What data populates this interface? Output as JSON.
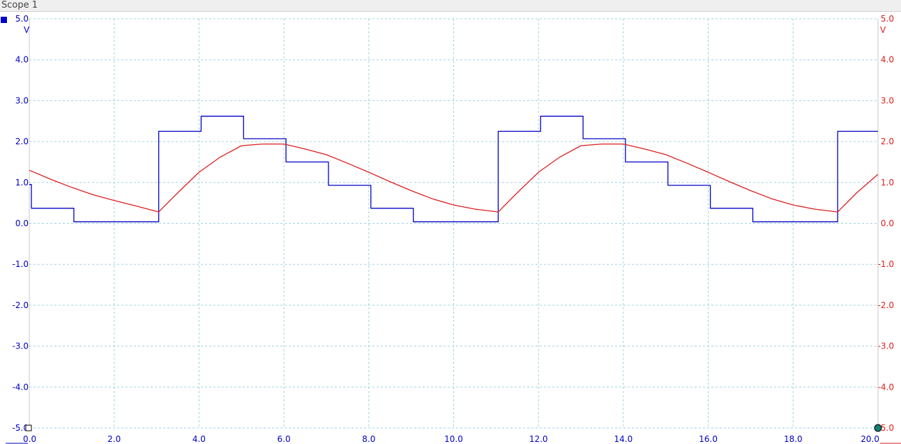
{
  "window": {
    "title": "Scope 1"
  },
  "chart_data": {
    "type": "line",
    "x_ticks": [
      "0.0",
      "2.0",
      "4.0",
      "6.0",
      "8.0",
      "10.0",
      "12.0",
      "14.0",
      "16.0",
      "18.0",
      "20.0"
    ],
    "y_ticks_left": [
      "5.0",
      "4.0",
      "3.0",
      "2.0",
      "1.0",
      "0.0",
      "-1.0",
      "-2.0",
      "-3.0",
      "-4.0",
      "-5.0"
    ],
    "y_ticks_right": [
      "5.0",
      "4.0",
      "3.0",
      "2.0",
      "1.0",
      "0.0",
      "-1.0",
      "-2.0",
      "-3.0",
      "-4.0",
      "-5.0"
    ],
    "xlim": [
      0,
      20
    ],
    "ylim": [
      -5,
      5
    ],
    "left_unit": "V",
    "right_unit": "V",
    "grid": true,
    "colors": {
      "channel_a": "#0000c8",
      "channel_b": "#dc1e1e",
      "grid": "#9fd3df",
      "accent": "#108070"
    },
    "series": [
      {
        "axis": "left",
        "step": true,
        "points": [
          [
            0,
            0.95
          ],
          [
            0.05,
            0.37
          ],
          [
            1.05,
            0.04
          ],
          [
            3.05,
            2.25
          ],
          [
            4.05,
            2.62
          ],
          [
            5.05,
            2.07
          ],
          [
            6.05,
            1.5
          ],
          [
            7.05,
            0.93
          ],
          [
            8.05,
            0.37
          ],
          [
            9.05,
            0.04
          ],
          [
            11.05,
            2.25
          ],
          [
            12.05,
            2.62
          ],
          [
            13.05,
            2.07
          ],
          [
            14.05,
            1.5
          ],
          [
            15.05,
            0.93
          ],
          [
            16.05,
            0.37
          ],
          [
            17.05,
            0.04
          ],
          [
            19.05,
            2.25
          ],
          [
            20,
            2.25
          ]
        ]
      },
      {
        "axis": "right",
        "step": false,
        "points": [
          [
            0,
            1.3
          ],
          [
            0.5,
            1.08
          ],
          [
            1,
            0.88
          ],
          [
            1.5,
            0.7
          ],
          [
            2,
            0.56
          ],
          [
            2.5,
            0.43
          ],
          [
            3.05,
            0.28
          ],
          [
            3.5,
            0.75
          ],
          [
            4,
            1.25
          ],
          [
            4.5,
            1.62
          ],
          [
            5,
            1.9
          ],
          [
            5.5,
            1.94
          ],
          [
            6,
            1.94
          ],
          [
            6.5,
            1.82
          ],
          [
            7,
            1.68
          ],
          [
            7.5,
            1.47
          ],
          [
            8,
            1.25
          ],
          [
            8.5,
            1.02
          ],
          [
            9,
            0.8
          ],
          [
            9.5,
            0.6
          ],
          [
            10,
            0.45
          ],
          [
            10.5,
            0.35
          ],
          [
            11.05,
            0.28
          ],
          [
            11.5,
            0.75
          ],
          [
            12,
            1.25
          ],
          [
            12.5,
            1.62
          ],
          [
            13,
            1.9
          ],
          [
            13.5,
            1.94
          ],
          [
            14,
            1.94
          ],
          [
            14.5,
            1.82
          ],
          [
            15,
            1.68
          ],
          [
            15.5,
            1.47
          ],
          [
            16,
            1.25
          ],
          [
            16.5,
            1.02
          ],
          [
            17,
            0.8
          ],
          [
            17.5,
            0.6
          ],
          [
            18,
            0.45
          ],
          [
            18.5,
            0.35
          ],
          [
            19.05,
            0.28
          ],
          [
            19.5,
            0.75
          ],
          [
            20,
            1.2
          ]
        ]
      }
    ]
  }
}
